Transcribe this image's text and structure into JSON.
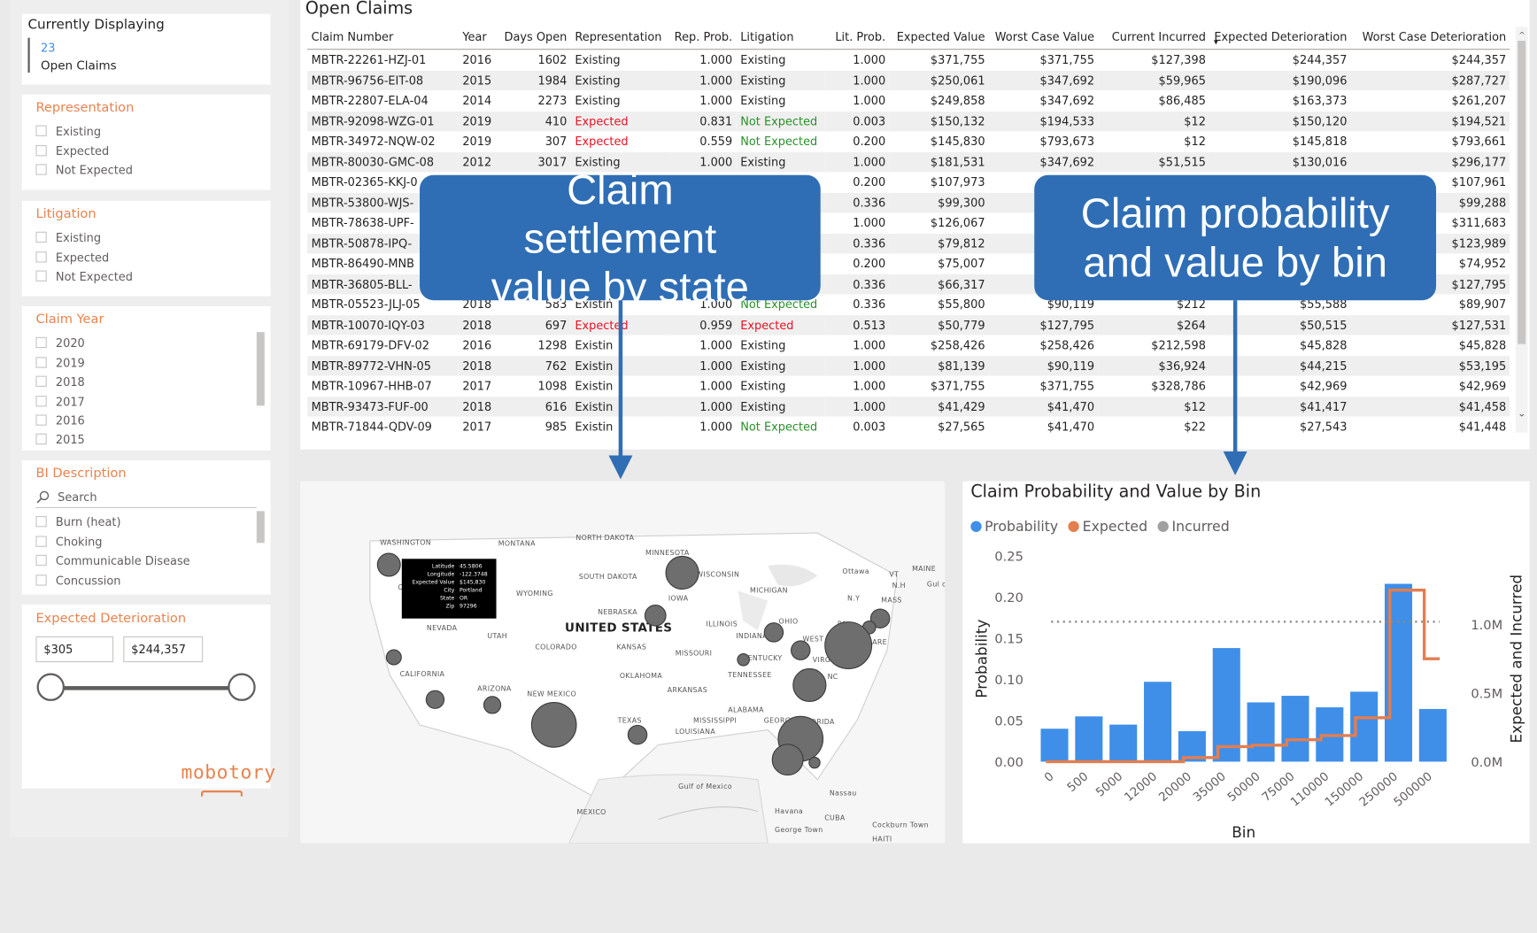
{
  "sidebar": {
    "currently_displaying": {
      "title": "Currently Displaying",
      "count": "23",
      "label": "Open Claims"
    },
    "representation": {
      "title": "Representation",
      "items": [
        "Existing",
        "Expected",
        "Not Expected"
      ]
    },
    "litigation": {
      "title": "Litigation",
      "items": [
        "Existing",
        "Expected",
        "Not Expected"
      ]
    },
    "claim_year": {
      "title": "Claim Year",
      "items": [
        "2020",
        "2019",
        "2018",
        "2017",
        "2016",
        "2015"
      ]
    },
    "bi_description": {
      "title": "BI Description",
      "search_placeholder": "Search",
      "items": [
        "Burn (heat)",
        "Choking",
        "Communicable Disease",
        "Concussion"
      ]
    },
    "expected_deterioration": {
      "title": "Expected Deterioration",
      "min": "$305",
      "max": "$244,357"
    },
    "logo": "mobotory"
  },
  "table": {
    "title": "Open Claims",
    "columns": [
      "Claim Number",
      "Year",
      "Days Open",
      "Representation",
      "Rep. Prob.",
      "Litigation",
      "Lit. Prob.",
      "Expected Value",
      "Worst Case Value",
      "Current Incurred",
      "Expected Deterioration",
      "Worst Case Deterioration"
    ],
    "rows": [
      [
        "MBTR-22261-HZJ-01",
        "2016",
        "1602",
        "Existing",
        "1.000",
        "Existing",
        "1.000",
        "$371,755",
        "$371,755",
        "$127,398",
        "$244,357",
        "$244,357"
      ],
      [
        "MBTR-96756-EIT-08",
        "2015",
        "1984",
        "Existing",
        "1.000",
        "Existing",
        "1.000",
        "$250,061",
        "$347,692",
        "$59,965",
        "$190,096",
        "$287,727"
      ],
      [
        "MBTR-22807-ELA-04",
        "2014",
        "2273",
        "Existing",
        "1.000",
        "Existing",
        "1.000",
        "$249,858",
        "$347,692",
        "$86,485",
        "$163,373",
        "$261,207"
      ],
      [
        "MBTR-92098-WZG-01",
        "2019",
        "410",
        "Expected",
        "0.831",
        "Not Expected",
        "0.003",
        "$150,132",
        "$194,533",
        "$12",
        "$150,120",
        "$194,521"
      ],
      [
        "MBTR-34972-NQW-02",
        "2019",
        "307",
        "Expected",
        "0.559",
        "Not Expected",
        "0.200",
        "$145,830",
        "$793,673",
        "$12",
        "$145,818",
        "$793,661"
      ],
      [
        "MBTR-80030-GMC-08",
        "2012",
        "3017",
        "Existing",
        "1.000",
        "Existing",
        "1.000",
        "$181,531",
        "$347,692",
        "$51,515",
        "$130,016",
        "$296,177"
      ],
      [
        "MBTR-02365-KKJ-0",
        "",
        "",
        "",
        "",
        "",
        "0.200",
        "$107,973",
        "",
        "",
        "",
        "$107,961"
      ],
      [
        "MBTR-53800-WJS-",
        "",
        "",
        "",
        "",
        "",
        "0.336",
        "$99,300",
        "",
        "",
        "",
        "$99,288"
      ],
      [
        "MBTR-78638-UPF-",
        "",
        "",
        "",
        "",
        "",
        "1.000",
        "$126,067",
        "",
        "",
        "",
        "$311,683"
      ],
      [
        "MBTR-50878-IPQ-",
        "",
        "",
        "",
        "",
        "",
        "0.336",
        "$79,812",
        "",
        "",
        "",
        "$123,989"
      ],
      [
        "MBTR-86490-MNB",
        "",
        "",
        "",
        "",
        "",
        "0.200",
        "$75,007",
        "",
        "",
        "",
        "$74,952"
      ],
      [
        "MBTR-36805-BLL-",
        "",
        "",
        "",
        "",
        "",
        "0.336",
        "$66,317",
        "",
        "",
        "",
        "$127,795"
      ],
      [
        "MBTR-05523-JLJ-05",
        "2018",
        "583",
        "Existin",
        "1.000",
        "Not Expected",
        "0.336",
        "$55,800",
        "$90,119",
        "$212",
        "$55,588",
        "$89,907"
      ],
      [
        "MBTR-10070-IQY-03",
        "2018",
        "697",
        "Expected",
        "0.959",
        "Expected",
        "0.513",
        "$50,779",
        "$127,795",
        "$264",
        "$50,515",
        "$127,531"
      ],
      [
        "MBTR-69179-DFV-02",
        "2016",
        "1298",
        "Existin",
        "1.000",
        "Existing",
        "1.000",
        "$258,426",
        "$258,426",
        "$212,598",
        "$45,828",
        "$45,828"
      ],
      [
        "MBTR-89772-VHN-05",
        "2018",
        "762",
        "Existin",
        "1.000",
        "Existing",
        "1.000",
        "$81,139",
        "$90,119",
        "$36,924",
        "$44,215",
        "$53,195"
      ],
      [
        "MBTR-10967-HHB-07",
        "2017",
        "1098",
        "Existin",
        "1.000",
        "Existing",
        "1.000",
        "$371,755",
        "$371,755",
        "$328,786",
        "$42,969",
        "$42,969"
      ],
      [
        "MBTR-93473-FUF-00",
        "2018",
        "616",
        "Existin",
        "1.000",
        "Existing",
        "1.000",
        "$41,429",
        "$41,470",
        "$12",
        "$41,417",
        "$41,458"
      ],
      [
        "MBTR-71844-QDV-09",
        "2017",
        "985",
        "Existin",
        "1.000",
        "Not Expected",
        "0.003",
        "$27,565",
        "$41,470",
        "$22",
        "$27,543",
        "$41,448"
      ]
    ]
  },
  "callouts": {
    "left": "Claim settlement value by state",
    "right": "Claim probability and value by bin"
  },
  "map": {
    "tooltip": [
      [
        "Latitude",
        "45.5806"
      ],
      [
        "Longitude",
        "-122.3748"
      ],
      [
        "Expected Value",
        "$145,830"
      ],
      [
        "City",
        "Portland"
      ],
      [
        "State",
        "OR"
      ],
      [
        "Zip",
        "97296"
      ]
    ],
    "country_label": "UNITED STATES",
    "labels": [
      "WASHINGTON",
      "MONTANA",
      "NORTH DAKOTA",
      "MINNESOTA",
      "SOUTH DAKOTA",
      "WISCONSIN",
      "MICHIGAN",
      "Ottawa",
      "MAINE",
      "VT",
      "N.H",
      "MASS",
      "R.I",
      "Gul of Mai",
      "WYOMING",
      "IOWA",
      "N.Y",
      "PA",
      "OR",
      "NEVADA",
      "UTAH",
      "NEBRASKA",
      "ILLINOIS",
      "INDIANA",
      "OHIO",
      "WEST VIRGINIA",
      "COLORADO",
      "KANSAS",
      "MISSOURI",
      "KENTUCKY",
      "VIRGINIA",
      "ARE",
      "CALIFORNIA",
      "TENNESSEE",
      "NC",
      "OKLAHOMA",
      "ARKANSAS",
      "ARIZONA",
      "NEW MEXICO",
      "ALABAMA",
      "MISSISSIPPI",
      "GEORGIA",
      "TEXAS",
      "LOUISIANA",
      "FLORIDA",
      "Gulf of Mexico",
      "Nassau",
      "MEXICO",
      "Havana",
      "CUBA",
      "George Town",
      "Cockburn Town",
      "HAITI"
    ]
  },
  "chart_data": {
    "type": "bar",
    "title": "Claim Probability and Value by Bin",
    "xlabel": "Bin",
    "ylabel": "Probability",
    "y2label": "Expected and Incurred",
    "categories": [
      "0",
      "500",
      "5000",
      "12000",
      "20000",
      "35000",
      "50000",
      "75000",
      "110000",
      "150000",
      "250000",
      "500000"
    ],
    "legend": [
      {
        "name": "Probability",
        "color": "#3f8fe8"
      },
      {
        "name": "Expected",
        "color": "#e37e4f"
      },
      {
        "name": "Incurred",
        "color": "#a0a0a0"
      }
    ],
    "ylim": [
      0,
      0.25
    ],
    "yticks": [
      "0.00",
      "0.05",
      "0.10",
      "0.15",
      "0.20",
      "0.25"
    ],
    "y2lim": [
      0,
      1500000
    ],
    "y2ticks": [
      "0.0M",
      "0.5M",
      "1.0M"
    ],
    "series": [
      {
        "name": "Probability",
        "values": [
          0.04,
          0.055,
          0.045,
          0.097,
          0.037,
          0.138,
          0.072,
          0.08,
          0.066,
          0.085,
          0.216,
          0.064
        ]
      },
      {
        "name": "Expected",
        "values": [
          0,
          0,
          0,
          0,
          30000,
          110000,
          120000,
          160000,
          190000,
          320000,
          1250000,
          750000
        ]
      },
      {
        "name": "Incurred",
        "reference": 0.17
      }
    ]
  }
}
